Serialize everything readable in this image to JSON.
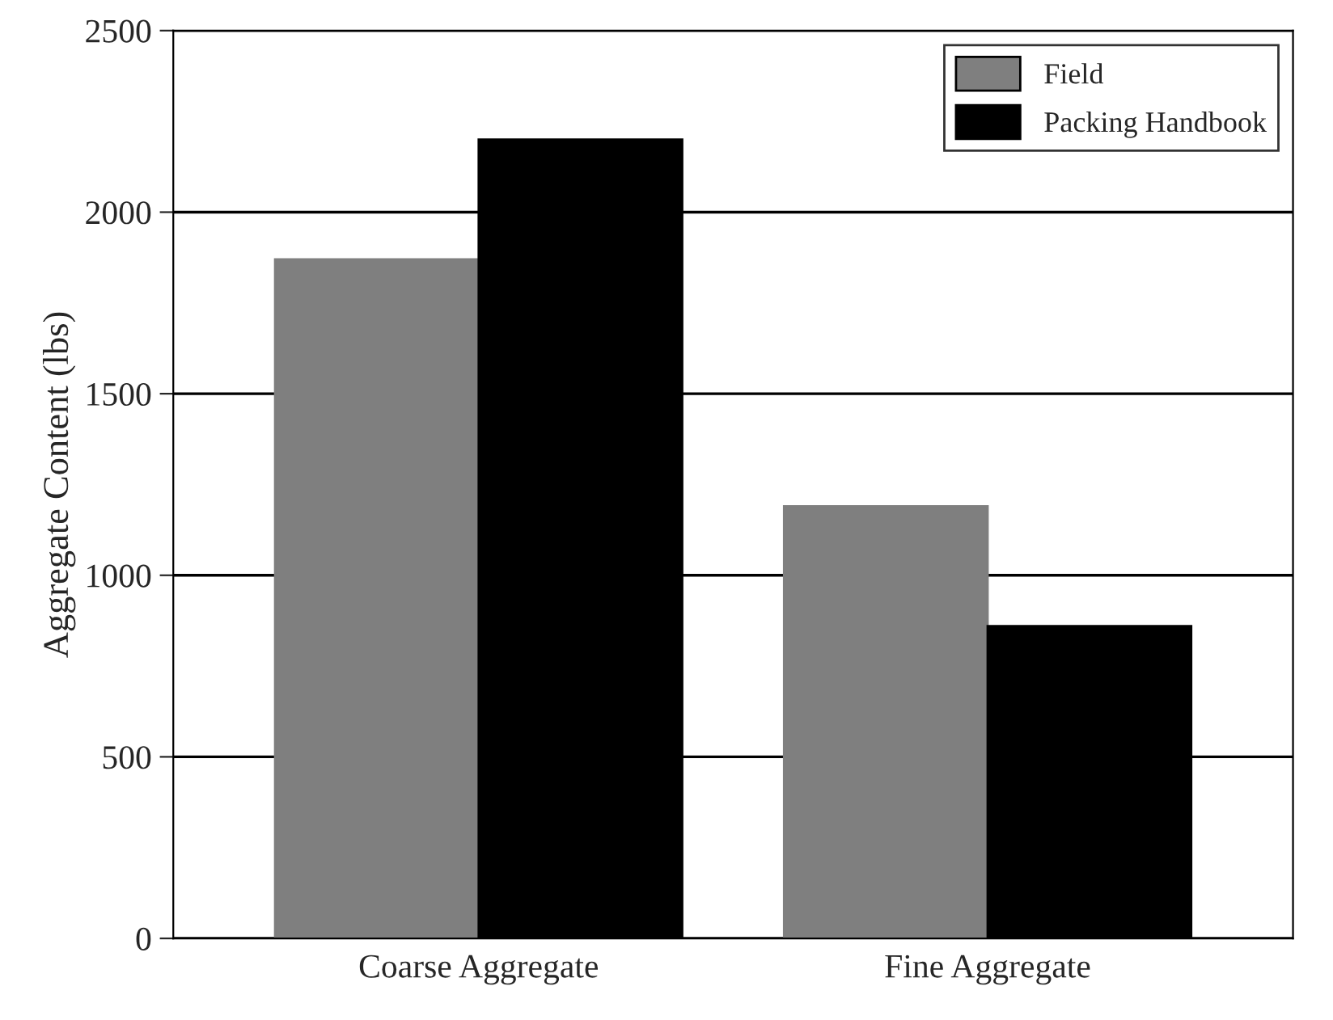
{
  "chart_data": {
    "type": "bar",
    "ylabel": "Aggregate Content (lbs)",
    "categories": [
      "Coarse Aggregate",
      "Fine Aggregate"
    ],
    "series": [
      {
        "name": "Field",
        "color": "#7f7f7f",
        "values": [
          1870,
          1190
        ]
      },
      {
        "name": "Packing Handbook",
        "color": "#000000",
        "values": [
          2200,
          860
        ]
      }
    ],
    "ylim": [
      0,
      2500
    ],
    "yticks": [
      0,
      500,
      1000,
      1500,
      2000,
      2500
    ],
    "grid": "y",
    "legend": "top right"
  }
}
